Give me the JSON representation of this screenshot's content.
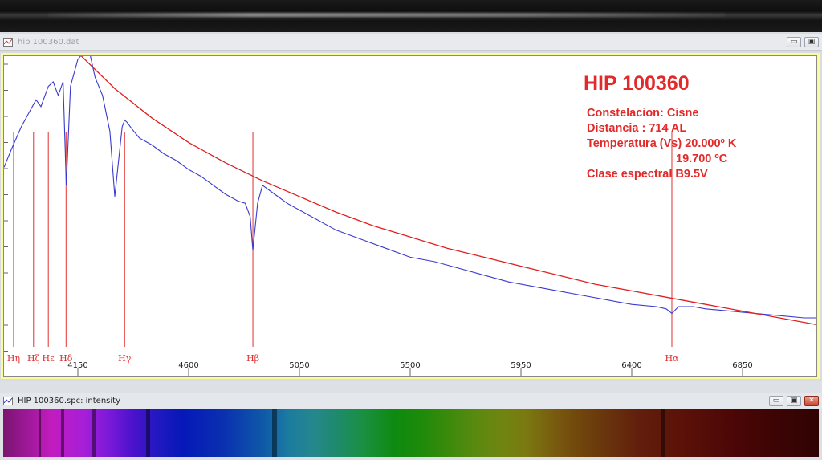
{
  "top_window": {},
  "plot_window": {
    "title": "hip 100360.dat",
    "controls": {
      "minimize": "▭",
      "restore": "▣"
    }
  },
  "annotation": {
    "title": "HIP 100360",
    "lines": [
      "Constelacion: Cisne",
      "Distancia : 714 AL",
      "Temperatura (Vs) 20.000º K",
      "19.700 ºC",
      "Clase espectral  B9.5V"
    ]
  },
  "bottom_window": {
    "title": "HIP 100360.spc: intensity",
    "controls": {
      "minimize": "▭",
      "restore": "▣",
      "close": "✕"
    }
  },
  "colors": {
    "spectrum_line": "#3a3ad0",
    "fit_curve": "#e02020",
    "markers": "#e03030",
    "annotation": "#e22a2a",
    "plot_border": "#fbfb98"
  },
  "chart_data": {
    "type": "line",
    "xlabel": "",
    "ylabel": "",
    "xlim": [
      3850,
      7150
    ],
    "x_ticks": [
      4150,
      4600,
      5050,
      5500,
      5950,
      6400,
      6850
    ],
    "series": [
      {
        "x": [
          3850,
          3880,
          3920,
          3960,
          3980,
          4000,
          4030,
          4050,
          4070,
          4090,
          4103,
          4120,
          4150,
          4180,
          4200,
          4220,
          4250,
          4280,
          4300,
          4330,
          4340,
          4350,
          4370,
          4400,
          4450,
          4500,
          4550,
          4600,
          4650,
          4700,
          4750,
          4800,
          4830,
          4850,
          4861,
          4880,
          4900,
          4950,
          5000,
          5100,
          5200,
          5300,
          5400,
          5500,
          5600,
          5700,
          5800,
          5900,
          6000,
          6100,
          6200,
          6300,
          6400,
          6500,
          6540,
          6563,
          6590,
          6650,
          6700,
          6800,
          6900,
          7000,
          7100,
          7150
        ],
        "y": [
          0.82,
          0.9,
          1.0,
          1.08,
          1.12,
          1.09,
          1.18,
          1.2,
          1.14,
          1.2,
          0.74,
          1.18,
          1.3,
          1.34,
          1.32,
          1.22,
          1.14,
          0.98,
          0.69,
          1.0,
          1.03,
          1.02,
          0.99,
          0.95,
          0.92,
          0.88,
          0.85,
          0.81,
          0.78,
          0.74,
          0.7,
          0.67,
          0.66,
          0.6,
          0.45,
          0.66,
          0.74,
          0.7,
          0.66,
          0.6,
          0.54,
          0.5,
          0.46,
          0.42,
          0.4,
          0.37,
          0.34,
          0.31,
          0.29,
          0.27,
          0.25,
          0.23,
          0.21,
          0.2,
          0.19,
          0.17,
          0.2,
          0.2,
          0.19,
          0.18,
          0.17,
          0.16,
          0.15,
          0.15
        ]
      },
      {
        "x": [
          4040,
          4150,
          4300,
          4450,
          4600,
          4750,
          4900,
          5050,
          5200,
          5350,
          5500,
          5650,
          5800,
          5950,
          6100,
          6250,
          6400,
          6550,
          6700,
          6850,
          7000,
          7150
        ],
        "y": [
          1.45,
          1.33,
          1.17,
          1.04,
          0.93,
          0.84,
          0.76,
          0.69,
          0.62,
          0.56,
          0.51,
          0.46,
          0.42,
          0.38,
          0.34,
          0.3,
          0.27,
          0.24,
          0.21,
          0.18,
          0.15,
          0.12
        ]
      }
    ],
    "lines": [
      {
        "label": "Hη",
        "x": 3889
      },
      {
        "label": "Hζ",
        "x": 3970
      },
      {
        "label": "Hε",
        "x": 4030
      },
      {
        "label": "Hδ",
        "x": 4102
      },
      {
        "label": "Hγ",
        "x": 4340
      },
      {
        "label": "Hβ",
        "x": 4861
      },
      {
        "label": "Hα",
        "x": 6563
      }
    ]
  }
}
